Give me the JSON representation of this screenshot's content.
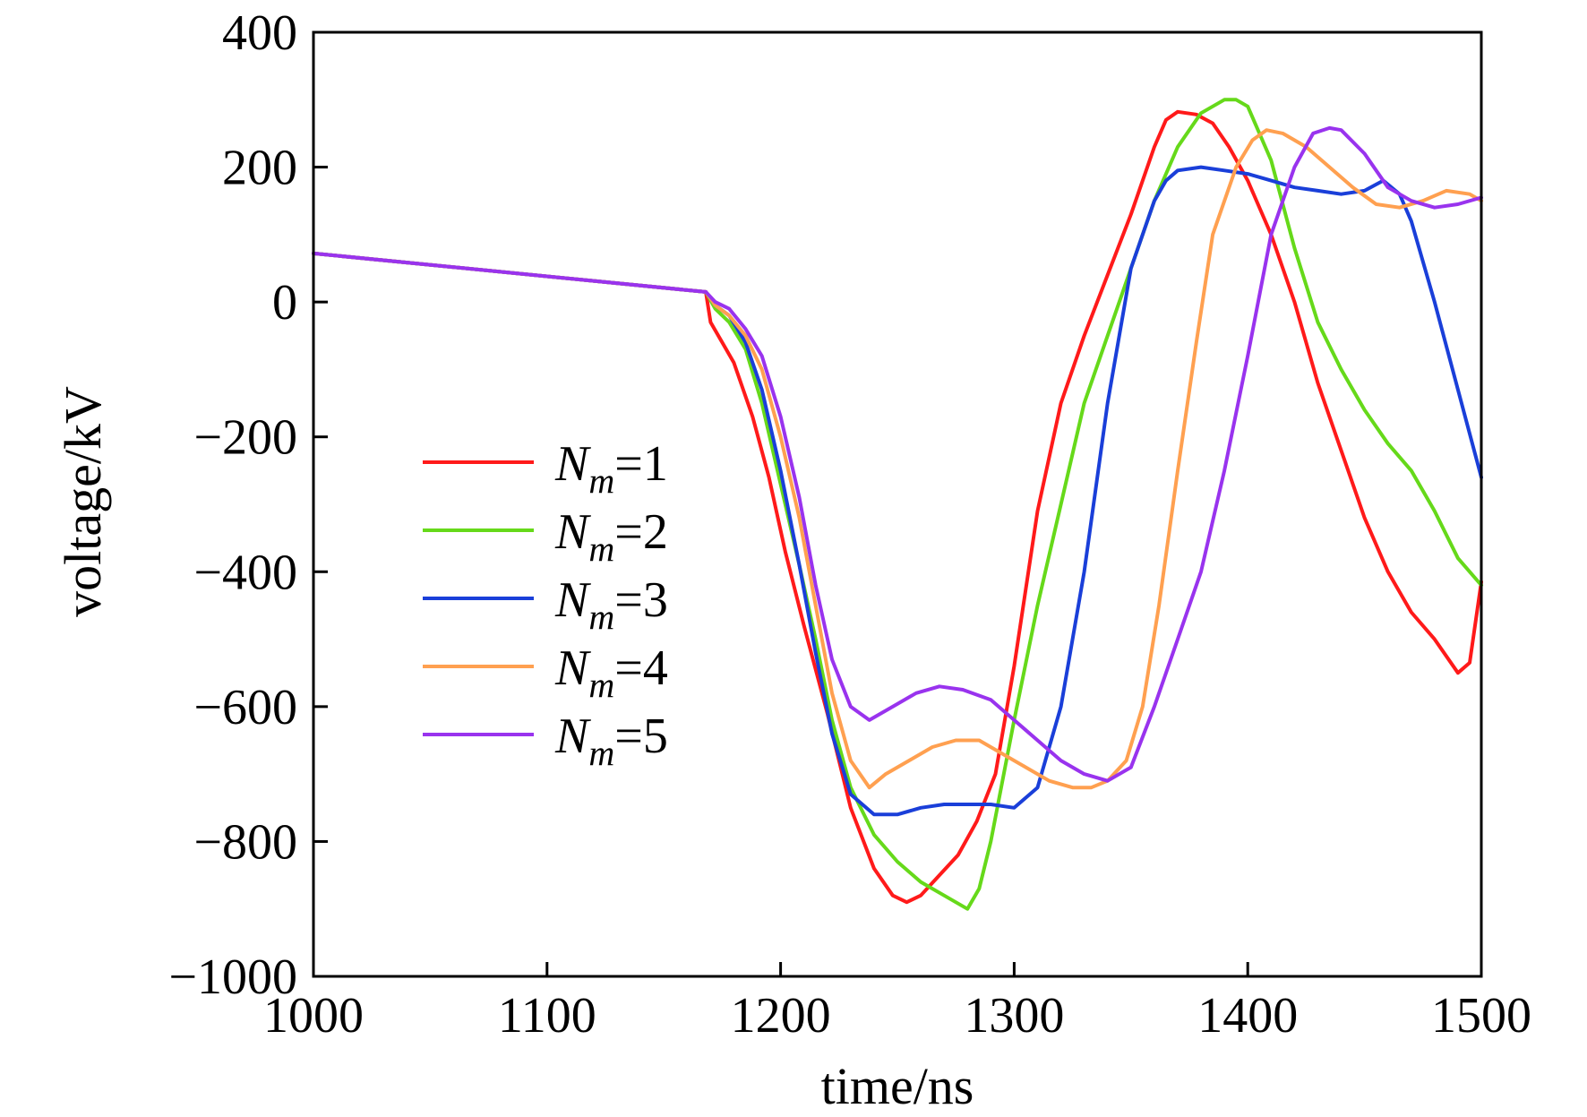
{
  "chart_data": {
    "type": "line",
    "title": "",
    "xlabel": "time/ns",
    "ylabel": "voltage/kV",
    "xlim": [
      1000,
      1500
    ],
    "ylim": [
      -1000,
      400
    ],
    "xticks": [
      1000,
      1100,
      1200,
      1300,
      1400,
      1500
    ],
    "yticks": [
      400,
      200,
      0,
      -200,
      -400,
      -600,
      -800,
      -1000
    ],
    "grid": false,
    "legend_position": "center-left",
    "series": [
      {
        "name": "Nm=1",
        "symbol": "N",
        "subscript": "m",
        "eq": "=1",
        "color": "#ff1a1a",
        "x": [
          1000,
          1168,
          1170,
          1175,
          1180,
          1188,
          1195,
          1202,
          1210,
          1220,
          1230,
          1240,
          1248,
          1254,
          1260,
          1268,
          1276,
          1284,
          1292,
          1300,
          1310,
          1320,
          1330,
          1340,
          1350,
          1360,
          1365,
          1370,
          1378,
          1385,
          1392,
          1400,
          1410,
          1420,
          1430,
          1440,
          1450,
          1460,
          1470,
          1480,
          1490,
          1495,
          1500
        ],
        "y": [
          72,
          15,
          -30,
          -60,
          -90,
          -170,
          -260,
          -370,
          -480,
          -610,
          -750,
          -840,
          -880,
          -890,
          -880,
          -850,
          -820,
          -770,
          -700,
          -540,
          -310,
          -150,
          -50,
          40,
          130,
          230,
          270,
          282,
          278,
          265,
          230,
          180,
          100,
          0,
          -120,
          -220,
          -320,
          -400,
          -460,
          -500,
          -550,
          -535,
          -415
        ]
      },
      {
        "name": "Nm=2",
        "symbol": "N",
        "subscript": "m",
        "eq": "=2",
        "color": "#66d91a",
        "x": [
          1000,
          1168,
          1172,
          1178,
          1185,
          1192,
          1200,
          1208,
          1215,
          1222,
          1230,
          1240,
          1250,
          1260,
          1270,
          1280,
          1285,
          1290,
          1300,
          1310,
          1320,
          1330,
          1340,
          1350,
          1360,
          1370,
          1380,
          1390,
          1395,
          1400,
          1410,
          1420,
          1430,
          1440,
          1450,
          1460,
          1470,
          1480,
          1490,
          1500
        ],
        "y": [
          72,
          15,
          -10,
          -30,
          -70,
          -150,
          -270,
          -390,
          -500,
          -620,
          -720,
          -790,
          -830,
          -860,
          -880,
          -900,
          -870,
          -800,
          -620,
          -450,
          -300,
          -150,
          -50,
          50,
          150,
          230,
          280,
          300,
          300,
          290,
          210,
          80,
          -30,
          -100,
          -160,
          -210,
          -250,
          -310,
          -380,
          -420
        ]
      },
      {
        "name": "Nm=3",
        "symbol": "N",
        "subscript": "m",
        "eq": "=3",
        "color": "#1a3fd9",
        "x": [
          1000,
          1168,
          1172,
          1178,
          1185,
          1192,
          1200,
          1208,
          1215,
          1222,
          1230,
          1240,
          1250,
          1260,
          1270,
          1280,
          1290,
          1300,
          1310,
          1320,
          1330,
          1340,
          1350,
          1360,
          1365,
          1370,
          1380,
          1390,
          1400,
          1410,
          1420,
          1430,
          1440,
          1450,
          1458,
          1465,
          1470,
          1480,
          1490,
          1500
        ],
        "y": [
          72,
          15,
          -5,
          -20,
          -60,
          -130,
          -250,
          -390,
          -520,
          -640,
          -730,
          -760,
          -760,
          -750,
          -745,
          -745,
          -745,
          -750,
          -720,
          -600,
          -400,
          -150,
          50,
          150,
          180,
          195,
          200,
          195,
          190,
          180,
          170,
          165,
          160,
          165,
          180,
          160,
          120,
          0,
          -130,
          -260
        ]
      },
      {
        "name": "Nm=4",
        "symbol": "N",
        "subscript": "m",
        "eq": "=4",
        "color": "#ffa050",
        "x": [
          1000,
          1168,
          1172,
          1178,
          1185,
          1192,
          1200,
          1208,
          1215,
          1222,
          1230,
          1238,
          1245,
          1255,
          1265,
          1275,
          1285,
          1295,
          1305,
          1315,
          1325,
          1333,
          1340,
          1348,
          1355,
          1362,
          1370,
          1378,
          1385,
          1395,
          1402,
          1408,
          1415,
          1425,
          1435,
          1445,
          1455,
          1465,
          1475,
          1485,
          1495,
          1500
        ],
        "y": [
          72,
          15,
          -5,
          -20,
          -50,
          -100,
          -200,
          -320,
          -450,
          -580,
          -680,
          -720,
          -700,
          -680,
          -660,
          -650,
          -650,
          -670,
          -690,
          -710,
          -720,
          -720,
          -710,
          -680,
          -600,
          -450,
          -250,
          -60,
          100,
          200,
          240,
          255,
          250,
          230,
          200,
          170,
          145,
          140,
          150,
          165,
          160,
          150
        ]
      },
      {
        "name": "Nm=5",
        "symbol": "N",
        "subscript": "m",
        "eq": "=5",
        "color": "#9933ee",
        "x": [
          1000,
          1168,
          1172,
          1178,
          1185,
          1192,
          1200,
          1208,
          1215,
          1222,
          1230,
          1238,
          1248,
          1258,
          1268,
          1278,
          1290,
          1300,
          1310,
          1320,
          1330,
          1340,
          1350,
          1360,
          1370,
          1380,
          1390,
          1400,
          1410,
          1420,
          1428,
          1435,
          1440,
          1450,
          1460,
          1470,
          1480,
          1490,
          1500
        ],
        "y": [
          72,
          15,
          0,
          -10,
          -40,
          -80,
          -170,
          -290,
          -420,
          -530,
          -600,
          -620,
          -600,
          -580,
          -570,
          -575,
          -590,
          -620,
          -650,
          -680,
          -700,
          -710,
          -690,
          -600,
          -500,
          -400,
          -250,
          -80,
          100,
          200,
          250,
          258,
          255,
          220,
          170,
          150,
          140,
          145,
          155
        ]
      }
    ]
  }
}
